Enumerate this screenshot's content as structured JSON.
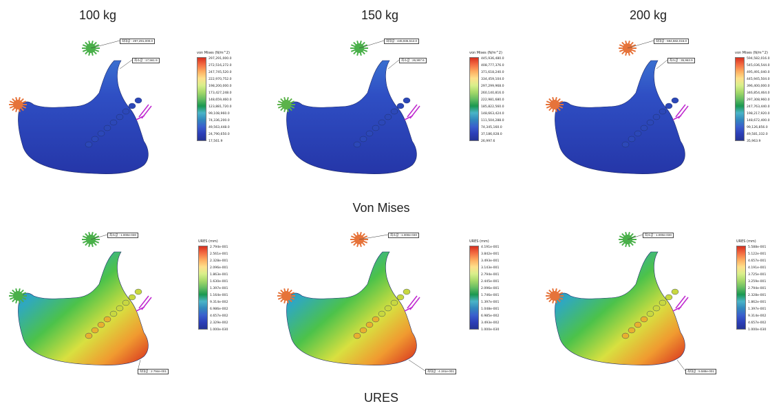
{
  "columns": [
    "100 kg",
    "150 kg",
    "200 kg"
  ],
  "rows": [
    "Von Mises",
    "URES"
  ],
  "vm_legend_title": "von Mises (N/m^2)",
  "ures_legend_title": "URES (mm)",
  "panels": [
    {
      "callouts": [
        "최대값 : 297,291,000.0",
        "최소값 : 17,561.9"
      ],
      "legend": [
        "297,291,000.0",
        "272,516,272.0",
        "247,745,520.0",
        "222,970,752.0",
        "198,200,000.0",
        "173,427,248.0",
        "148,659,460.0",
        "123,881,720.0",
        "99,108,960.0",
        "74,336,200.0",
        "49,563,448.0",
        "24,790,650.0",
        "17,561.9"
      ]
    },
    {
      "callouts": [
        "최대값 : 445,936,512.0",
        "최소값 : 26,997.6"
      ],
      "legend": [
        "445,936,480.0",
        "408,777,376.0",
        "371,618,240.0",
        "334,459,104.0",
        "297,299,968.0",
        "260,140,816.0",
        "222,981,680.0",
        "185,822,560.0",
        "148,663,424.0",
        "111,504,288.0",
        "74,345,160.0",
        "37,186,028.0",
        "26,997.6"
      ]
    },
    {
      "callouts": [
        "최대값 : 594,582,016.0",
        "최소값 : 35,963.9"
      ],
      "legend": [
        "594,582,016.0",
        "545,036,544.0",
        "495,491,040.0",
        "445,945,504.0",
        "396,400,000.0",
        "346,854,464.0",
        "297,308,960.0",
        "247,763,440.0",
        "198,217,920.0",
        "148,672,400.0",
        "99,126,856.0",
        "49,581,332.0",
        "35,963.9"
      ]
    },
    {
      "callouts": [
        "최소값 : 1.000e-030",
        "최대값 : 2.794e-001"
      ],
      "legend": [
        "2.794e-001",
        "2.561e-001",
        "2.328e-001",
        "2.096e-001",
        "1.863e-001",
        "1.630e-001",
        "1.397e-001",
        "1.164e-001",
        "9.314e-002",
        "6.986e-002",
        "4.657e-002",
        "2.329e-002",
        "1.000e-030"
      ]
    },
    {
      "callouts": [
        "최소값 : 1.000e-030",
        "최대값 : 4.191e-001"
      ],
      "legend": [
        "4.191e-001",
        "3.842e-001",
        "3.493e-001",
        "3.143e-001",
        "2.794e-001",
        "2.445e-001",
        "2.096e-001",
        "1.746e-001",
        "1.397e-001",
        "1.048e-001",
        "6.985e-002",
        "3.493e-002",
        "1.000e-030"
      ]
    },
    {
      "callouts": [
        "최소값 : 1.000e-030",
        "최대값 : 5.588e-001"
      ],
      "legend": [
        "5.588e-001",
        "5.122e-001",
        "4.657e-001",
        "4.191e-001",
        "3.725e-001",
        "3.259e-001",
        "2.794e-001",
        "2.328e-001",
        "1.862e-001",
        "1.397e-001",
        "9.314e-002",
        "4.657e-002",
        "1.000e-030"
      ]
    }
  ]
}
